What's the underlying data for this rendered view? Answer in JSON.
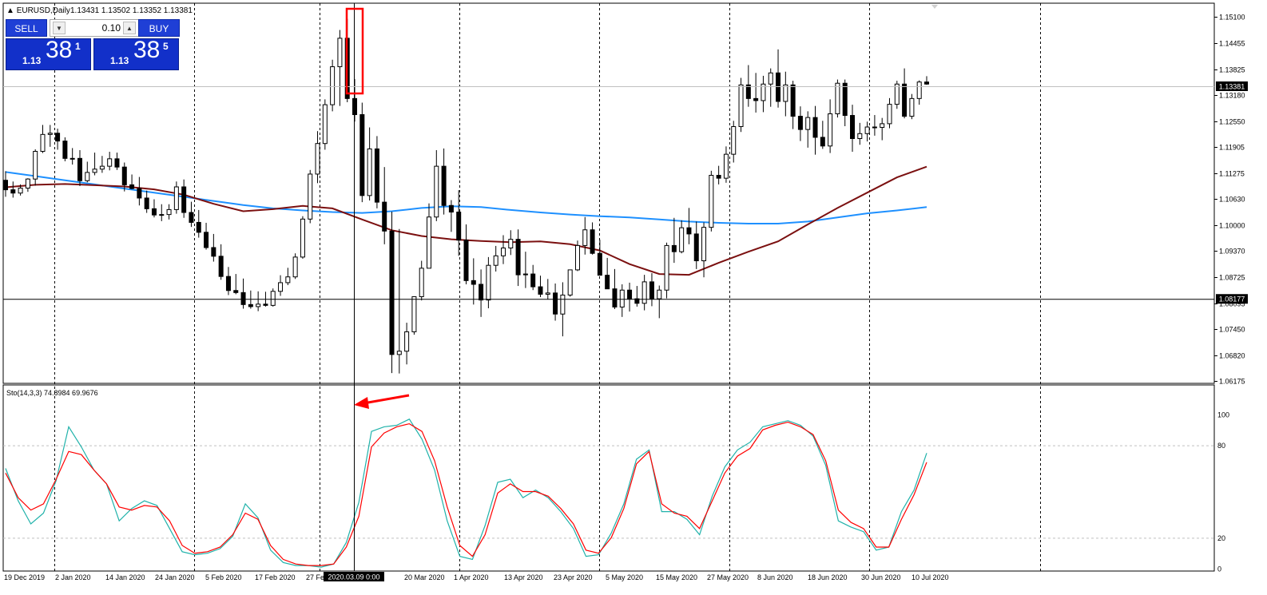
{
  "header": {
    "symbol_label": "EURUSD,Daily",
    "ohlc_label": "1.13431 1.13502 1.13352 1.13381"
  },
  "trade_panel": {
    "sell_label": "SELL",
    "buy_label": "BUY",
    "lot_value": "0.10",
    "sell_price_prefix": "1.13",
    "sell_price_main": "38",
    "sell_price_sup": "1",
    "buy_price_prefix": "1.13",
    "buy_price_main": "38",
    "buy_price_sup": "5"
  },
  "crosshair": {
    "price_label": "1.08177",
    "date_label": "2020.03.09 0:00"
  },
  "colors": {
    "bull_candle": "#ffffff",
    "bear_candle": "#000000",
    "ma_blue": "#1e90ff",
    "ma_maroon": "#7b1010",
    "stoch_main": "#20b2aa",
    "stoch_signal": "#ff0000",
    "highlight": "#ff0000"
  },
  "chart_data": [
    {
      "type": "candlestick",
      "title": "EURUSD,Daily",
      "x_tick_labels": [
        "19 Dec 2019",
        "2 Jan 2020",
        "14 Jan 2020",
        "24 Jan 2020",
        "5 Feb 2020",
        "17 Feb 2020",
        "27 Feb 2020",
        "2020.03.09 0:00",
        "20 Mar 2020",
        "1 Apr 2020",
        "13 Apr 2020",
        "23 Apr 2020",
        "5 May 2020",
        "15 May 2020",
        "27 May 2020",
        "8 Jun 2020",
        "18 Jun 2020",
        "30 Jun 2020",
        "10 Jul 2020"
      ],
      "y_tick_labels": [
        "1.15100",
        "1.14455",
        "1.13825",
        "1.13180",
        "1.12550",
        "1.11905",
        "1.11275",
        "1.10630",
        "1.10000",
        "1.09370",
        "1.08725",
        "1.08095",
        "1.07450",
        "1.06820",
        "1.06175"
      ],
      "ylim": [
        1.0617,
        1.153
      ],
      "current_price": 1.13381,
      "open": [
        1.1105,
        1.1082,
        1.1074,
        1.1086,
        1.1108,
        1.1175,
        1.1216,
        1.1219,
        1.12,
        1.1158,
        1.1158,
        1.1104,
        1.1124,
        1.1132,
        1.1139,
        1.1157,
        1.1137,
        1.1094,
        1.1085,
        1.1062,
        1.1036,
        1.1021,
        1.1022,
        1.1034,
        1.1089,
        1.1027,
        1.1003,
        1.0979,
        1.0942,
        1.0921,
        1.0872,
        1.0838,
        1.0833,
        1.0804,
        1.0799,
        1.0805,
        1.0802,
        1.0836,
        1.0857,
        1.0871,
        1.0919,
        1.1011,
        1.112,
        1.1194,
        1.1288,
        1.138,
        1.1449,
        1.1303,
        1.1264,
        1.1068,
        1.1181,
        1.1052,
        1.0982,
        1.0683,
        1.0691,
        1.0738,
        1.0823,
        1.0892,
        1.1016,
        1.1139,
        1.1044,
        1.1028,
        1.096,
        1.0862,
        1.0853,
        1.0815,
        1.0899,
        1.0922,
        1.0941,
        1.0962,
        1.0876,
        1.0878,
        1.0847,
        1.0829,
        1.0832,
        1.0781,
        1.0827,
        1.0888,
        1.0947,
        1.0985,
        1.0928,
        1.0875,
        1.0842,
        1.0798,
        1.0839,
        1.0818,
        1.0807,
        1.0859,
        1.0818,
        1.0839,
        1.0947,
        1.0932,
        1.099,
        1.0975,
        1.091,
        1.0991,
        1.1117,
        1.111,
        1.1168,
        1.1235,
        1.1336,
        1.1303,
        1.1298,
        1.1338,
        1.1365,
        1.1296,
        1.1336,
        1.126,
        1.1228,
        1.1257,
        1.1209,
        1.1188,
        1.1266,
        1.134,
        1.1262,
        1.1206,
        1.1218,
        1.1234,
        1.1233,
        1.1242,
        1.1289,
        1.1338,
        1.126,
        1.1303,
        1.1343
      ],
      "high": [
        1.1127,
        1.1102,
        1.1095,
        1.111,
        1.118,
        1.1239,
        1.1239,
        1.123,
        1.1209,
        1.1183,
        1.1178,
        1.115,
        1.1172,
        1.1164,
        1.1174,
        1.1172,
        1.1148,
        1.1119,
        1.1113,
        1.108,
        1.1059,
        1.1047,
        1.1047,
        1.1102,
        1.1107,
        1.1053,
        1.1033,
        1.1002,
        1.0975,
        1.095,
        1.0895,
        1.0878,
        1.0867,
        1.0838,
        1.0836,
        1.0835,
        1.0843,
        1.0875,
        1.0893,
        1.0928,
        1.1018,
        1.113,
        1.1224,
        1.1301,
        1.1397,
        1.1469,
        1.1496,
        1.135,
        1.1293,
        1.1233,
        1.1212,
        1.1137,
        1.1029,
        1.0987,
        1.076,
        1.0824,
        1.091,
        1.1049,
        1.1178,
        1.1182,
        1.1057,
        1.1081,
        1.0998,
        1.0916,
        1.0889,
        1.0919,
        1.0946,
        1.0972,
        1.0984,
        1.0986,
        1.0932,
        1.09,
        1.0874,
        1.0866,
        1.0855,
        1.0858,
        1.088,
        1.0959,
        1.1016,
        1.1003,
        1.0961,
        1.0917,
        1.089,
        1.0853,
        1.0857,
        1.0849,
        1.0876,
        1.088,
        1.085,
        1.0954,
        1.1014,
        1.1008,
        1.1038,
        1.1005,
        1.1003,
        1.1128,
        1.114,
        1.1187,
        1.1249,
        1.1353,
        1.1384,
        1.1365,
        1.1358,
        1.1376,
        1.1422,
        1.1368,
        1.1346,
        1.1284,
        1.1272,
        1.1285,
        1.1249,
        1.1301,
        1.1349,
        1.1349,
        1.1288,
        1.1244,
        1.1247,
        1.1263,
        1.1256,
        1.1304,
        1.1346,
        1.1376,
        1.1314,
        1.1347,
        1.1357
      ],
      "low": [
        1.1065,
        1.1063,
        1.1068,
        1.1077,
        1.1092,
        1.1171,
        1.1186,
        1.1179,
        1.1151,
        1.1143,
        1.1091,
        1.11,
        1.1117,
        1.1123,
        1.1129,
        1.113,
        1.1078,
        1.1083,
        1.1044,
        1.1026,
        1.1015,
        1.1006,
        1.101,
        1.1024,
        1.1014,
        1.0992,
        1.0966,
        1.0937,
        1.0908,
        1.0864,
        1.0827,
        1.0829,
        1.0794,
        1.0794,
        1.0788,
        1.0799,
        1.0799,
        1.0825,
        1.0851,
        1.0866,
        1.0915,
        1.1001,
        1.1098,
        1.1179,
        1.1272,
        1.1285,
        1.1294,
        1.1247,
        1.1052,
        1.1056,
        1.1037,
        1.095,
        1.0638,
        1.0637,
        1.0659,
        1.0731,
        1.0814,
        1.0892,
        1.1006,
        1.1022,
        1.098,
        1.0922,
        1.0853,
        1.0804,
        1.0774,
        1.0795,
        1.0884,
        1.0902,
        1.0924,
        1.0849,
        1.0844,
        1.0839,
        1.0822,
        1.0817,
        1.0765,
        1.0727,
        1.0823,
        1.0885,
        1.0925,
        1.0925,
        1.0875,
        1.085,
        1.0793,
        1.0774,
        1.0787,
        1.0799,
        1.079,
        1.08,
        1.0771,
        1.0819,
        1.0905,
        1.0928,
        1.095,
        1.089,
        1.087,
        1.0981,
        1.1095,
        1.1099,
        1.1148,
        1.1222,
        1.1283,
        1.1269,
        1.127,
        1.1283,
        1.1281,
        1.126,
        1.1229,
        1.12,
        1.1184,
        1.1167,
        1.1181,
        1.1171,
        1.1257,
        1.1236,
        1.1174,
        1.1191,
        1.1199,
        1.1213,
        1.1202,
        1.1231,
        1.1278,
        1.1255,
        1.1253,
        1.1288,
        1.1336
      ],
      "close": [
        1.1082,
        1.1074,
        1.1086,
        1.1108,
        1.1175,
        1.1216,
        1.1219,
        1.12,
        1.1158,
        1.1158,
        1.1104,
        1.1124,
        1.1132,
        1.1139,
        1.1157,
        1.1137,
        1.1094,
        1.1085,
        1.1062,
        1.1036,
        1.1021,
        1.1022,
        1.1034,
        1.1089,
        1.1027,
        1.1003,
        1.0979,
        1.0942,
        1.0921,
        1.0872,
        1.0838,
        1.0833,
        1.0804,
        1.0799,
        1.0805,
        1.0802,
        1.0836,
        1.0857,
        1.0871,
        1.0919,
        1.1011,
        1.112,
        1.1194,
        1.1288,
        1.138,
        1.1449,
        1.1303,
        1.1264,
        1.1068,
        1.1181,
        1.1052,
        1.0982,
        1.0683,
        1.0691,
        1.0738,
        1.0823,
        1.0892,
        1.1016,
        1.1139,
        1.1044,
        1.1028,
        1.096,
        1.0862,
        1.0853,
        1.0815,
        1.0899,
        1.0922,
        1.0941,
        1.0962,
        1.0876,
        1.0878,
        1.0847,
        1.0829,
        1.0832,
        1.0781,
        1.0827,
        1.0888,
        1.0947,
        1.0985,
        1.0928,
        1.0875,
        1.0842,
        1.0798,
        1.0839,
        1.0818,
        1.0807,
        1.0859,
        1.0818,
        1.0839,
        1.0947,
        1.0932,
        1.099,
        1.0975,
        1.091,
        1.0991,
        1.1117,
        1.111,
        1.1168,
        1.1235,
        1.1336,
        1.1303,
        1.1298,
        1.1338,
        1.1365,
        1.1296,
        1.1336,
        1.126,
        1.1228,
        1.1257,
        1.1209,
        1.1188,
        1.1266,
        1.134,
        1.1262,
        1.1206,
        1.1218,
        1.1234,
        1.1233,
        1.1242,
        1.1289,
        1.1338,
        1.126,
        1.1303,
        1.1343,
        1.1338
      ],
      "moving_averages": [
        {
          "color": "#1e90ff",
          "values": [
            1.1125,
            1.1115,
            1.1105,
            1.1095,
            1.1085,
            1.1075,
            1.1065,
            1.1055,
            1.1045,
            1.1037,
            1.1032,
            1.1028,
            1.1026,
            1.103,
            1.1038,
            1.1042,
            1.104,
            1.1033,
            1.1027,
            1.1022,
            1.1018,
            1.1015,
            1.101,
            1.1005,
            1.1002,
            1.1,
            1.1,
            1.1005,
            1.1015,
            1.1025,
            1.1032,
            1.104
          ]
        },
        {
          "color": "#7b1010",
          "values": [
            1.1088,
            1.1094,
            1.1096,
            1.1093,
            1.109,
            1.1083,
            1.107,
            1.1048,
            1.103,
            1.1035,
            1.1043,
            1.1037,
            1.101,
            1.0984,
            1.097,
            1.0962,
            1.0958,
            1.0955,
            1.0957,
            1.095,
            1.0935,
            1.0902,
            1.0878,
            1.0876,
            1.0905,
            1.0932,
            1.0957,
            1.0998,
            1.1038,
            1.1075,
            1.1112,
            1.1138
          ]
        }
      ]
    },
    {
      "type": "line",
      "title": "Sto(14,3,3) 74.8984 69.9676",
      "y_tick_labels": [
        "100",
        "80",
        "20",
        "0"
      ],
      "ylim": [
        0,
        100
      ],
      "levels": [
        80,
        20
      ],
      "series": [
        {
          "name": "Sto(14,3,3) main",
          "color": "#20b2aa",
          "values": [
            65,
            44,
            29,
            36,
            57,
            92,
            79,
            64,
            55,
            31,
            39,
            44,
            41,
            26,
            11,
            9,
            10,
            13,
            21,
            42,
            33,
            12,
            4,
            2,
            2,
            1,
            3,
            17,
            43,
            89,
            92,
            93,
            97,
            84,
            64,
            31,
            8,
            6,
            28,
            56,
            58,
            46,
            51,
            46,
            37,
            26,
            8,
            9,
            23,
            42,
            71,
            77,
            37,
            37,
            32,
            22,
            47,
            66,
            77,
            82,
            92,
            94,
            96,
            93,
            86,
            67,
            31,
            27,
            24,
            12,
            14,
            37,
            51,
            75
          ]
        },
        {
          "name": "Sto(14,3,3) signal",
          "color": "#ff0000",
          "values": [
            62,
            46,
            38,
            42,
            58,
            76,
            74,
            64,
            55,
            40,
            38,
            41,
            40,
            31,
            15,
            10,
            11,
            14,
            22,
            36,
            32,
            15,
            6,
            3,
            2,
            2,
            3,
            14,
            34,
            79,
            88,
            92,
            94,
            89,
            70,
            40,
            15,
            8,
            22,
            49,
            55,
            50,
            50,
            47,
            39,
            29,
            12,
            10,
            20,
            39,
            68,
            76,
            42,
            36,
            34,
            26,
            44,
            62,
            73,
            78,
            90,
            93,
            95,
            92,
            87,
            70,
            38,
            30,
            26,
            14,
            14,
            32,
            48,
            69
          ]
        }
      ]
    }
  ]
}
